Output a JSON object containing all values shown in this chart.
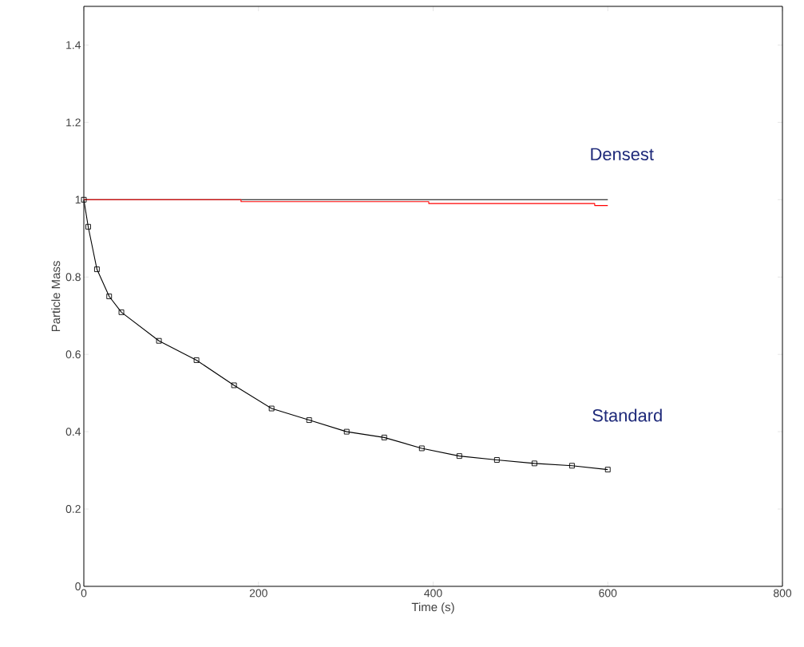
{
  "chart_data": {
    "type": "line",
    "xlabel": "Time (s)",
    "ylabel": "Particle Mass",
    "xlim": [
      0,
      800
    ],
    "ylim": [
      0,
      1.5
    ],
    "xticks": [
      0,
      200,
      400,
      600,
      800
    ],
    "yticks": [
      0,
      0.2,
      0.4,
      0.6,
      0.8,
      1,
      1.2,
      1.4
    ],
    "legend": false,
    "series": [
      {
        "color": "#000000",
        "x": [
          0,
          600
        ],
        "values": [
          1,
          1
        ]
      },
      {
        "type": "step",
        "color": "#ff0000",
        "x": [
          0,
          180,
          395,
          585,
          600
        ],
        "values": [
          1,
          0.995,
          0.99,
          0.985,
          0.985
        ]
      },
      {
        "color": "#000000",
        "marker": "square",
        "x": [
          0,
          5,
          15,
          29,
          43,
          86,
          129,
          172,
          215,
          258,
          301,
          344,
          387,
          430,
          473,
          516,
          559,
          600
        ],
        "values": [
          1,
          0.93,
          0.82,
          0.75,
          0.709,
          0.635,
          0.585,
          0.52,
          0.46,
          0.43,
          0.4,
          0.385,
          0.357,
          0.337,
          0.327,
          0.318,
          0.312,
          0.302
        ]
      }
    ],
    "annotations": [
      "Densest",
      "Standard"
    ]
  }
}
